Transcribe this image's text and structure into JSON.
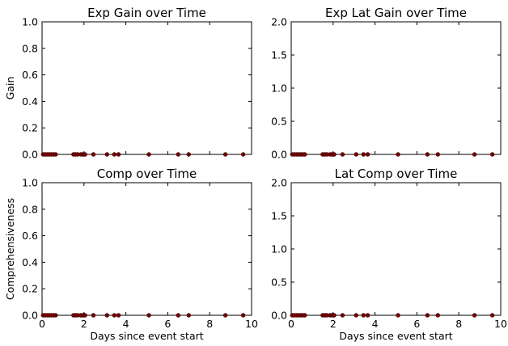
{
  "chart_data": [
    {
      "type": "scatter",
      "title": "Exp Gain over Time",
      "ylabel": "Gain",
      "xlabel": "",
      "xlim": [
        0,
        10
      ],
      "ylim": [
        0,
        1.0
      ],
      "xticks": [],
      "yticks": [
        "0.0",
        "0.2",
        "0.4",
        "0.6",
        "0.8",
        "1.0"
      ],
      "marker_color": "#7a0000",
      "series": [
        {
          "x": [
            0.05,
            0.15,
            0.25,
            0.35,
            0.45,
            0.55,
            0.65,
            1.5,
            1.6,
            1.7,
            1.85,
            1.95,
            2.0,
            2.05,
            2.45,
            3.1,
            3.45,
            3.65,
            5.1,
            6.5,
            7.0,
            8.75,
            9.6
          ],
          "y": [
            0,
            0,
            0,
            0,
            0,
            0,
            0,
            0,
            0,
            0,
            0,
            0,
            0,
            0,
            0,
            0,
            0,
            0,
            0,
            0,
            0,
            0,
            0
          ]
        }
      ]
    },
    {
      "type": "scatter",
      "title": "Exp Lat Gain over Time",
      "ylabel": "",
      "xlabel": "",
      "xlim": [
        0,
        10
      ],
      "ylim": [
        0,
        2.0
      ],
      "xticks": [],
      "yticks": [
        "0.0",
        "0.5",
        "1.0",
        "1.5",
        "2.0"
      ],
      "marker_color": "#7a0000",
      "series": [
        {
          "x": [
            0.05,
            0.15,
            0.25,
            0.35,
            0.45,
            0.55,
            0.65,
            1.5,
            1.6,
            1.7,
            1.85,
            1.95,
            2.0,
            2.05,
            2.45,
            3.1,
            3.45,
            3.65,
            5.1,
            6.5,
            7.0,
            8.75,
            9.6
          ],
          "y": [
            0,
            0,
            0,
            0,
            0,
            0,
            0,
            0,
            0,
            0,
            0,
            0,
            0,
            0,
            0,
            0,
            0,
            0,
            0,
            0,
            0,
            0,
            0
          ]
        }
      ]
    },
    {
      "type": "scatter",
      "title": "Comp over Time",
      "ylabel": "Comprehensiveness",
      "xlabel": "Days since event start",
      "xlim": [
        0,
        10
      ],
      "ylim": [
        0,
        1.0
      ],
      "xticks": [
        "0",
        "2",
        "4",
        "6",
        "8",
        "10"
      ],
      "yticks": [
        "0.0",
        "0.2",
        "0.4",
        "0.6",
        "0.8",
        "1.0"
      ],
      "marker_color": "#7a0000",
      "series": [
        {
          "x": [
            0.05,
            0.15,
            0.25,
            0.35,
            0.45,
            0.55,
            0.65,
            1.5,
            1.6,
            1.7,
            1.85,
            1.95,
            2.0,
            2.05,
            2.45,
            3.1,
            3.45,
            3.65,
            5.1,
            6.5,
            7.0,
            8.75,
            9.6
          ],
          "y": [
            0,
            0,
            0,
            0,
            0,
            0,
            0,
            0,
            0,
            0,
            0,
            0,
            0,
            0,
            0,
            0,
            0,
            0,
            0,
            0,
            0,
            0,
            0
          ]
        }
      ]
    },
    {
      "type": "scatter",
      "title": "Lat Comp over Time",
      "ylabel": "",
      "xlabel": "Days since event start",
      "xlim": [
        0,
        10
      ],
      "ylim": [
        0,
        2.0
      ],
      "xticks": [
        "0",
        "2",
        "4",
        "6",
        "8",
        "10"
      ],
      "yticks": [
        "0.0",
        "0.5",
        "1.0",
        "1.5",
        "2.0"
      ],
      "marker_color": "#7a0000",
      "series": [
        {
          "x": [
            0.05,
            0.15,
            0.25,
            0.35,
            0.45,
            0.55,
            0.65,
            1.5,
            1.6,
            1.7,
            1.85,
            1.95,
            2.0,
            2.05,
            2.45,
            3.1,
            3.45,
            3.65,
            5.1,
            6.5,
            7.0,
            8.75,
            9.6
          ],
          "y": [
            0,
            0,
            0,
            0,
            0,
            0,
            0,
            0,
            0,
            0,
            0,
            0,
            0,
            0,
            0,
            0,
            0,
            0,
            0,
            0,
            0,
            0,
            0
          ]
        }
      ]
    }
  ]
}
